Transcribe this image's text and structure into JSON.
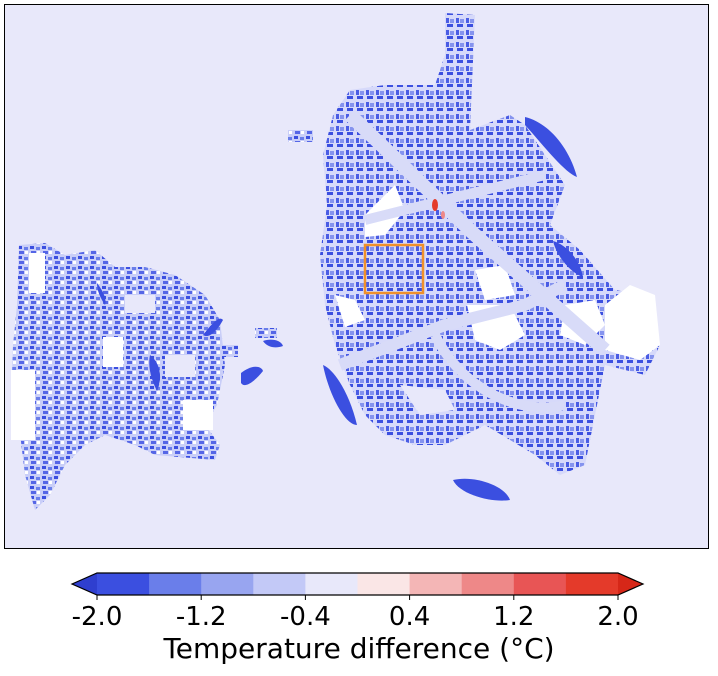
{
  "chart_data": {
    "type": "heatmap",
    "title": "",
    "colorbar": {
      "label": "Temperature difference (°C)",
      "tick_labels": [
        "-2.0",
        "-1.2",
        "-0.4",
        "0.4",
        "1.2",
        "2.0"
      ],
      "tick_values": [
        -2.0,
        -1.2,
        -0.4,
        0.4,
        1.2,
        2.0
      ],
      "range": [
        -2.0,
        2.0
      ],
      "levels": [
        -2.0,
        -1.6,
        -1.2,
        -0.8,
        -0.4,
        0.0,
        0.4,
        0.8,
        1.2,
        1.6,
        2.0
      ],
      "extend": "both",
      "colors": [
        "#3b4fe0",
        "#6a7eea",
        "#98a5f0",
        "#c3c9f7",
        "#e8e8fa",
        "#fae6e6",
        "#f4b6b6",
        "#ee8888",
        "#e85555",
        "#e43a2a"
      ],
      "under_color": "#2f3fcf",
      "over_color": "#d62718"
    },
    "background_color": "#e8e8fa",
    "highlight_box_color": "#f0902a"
  }
}
